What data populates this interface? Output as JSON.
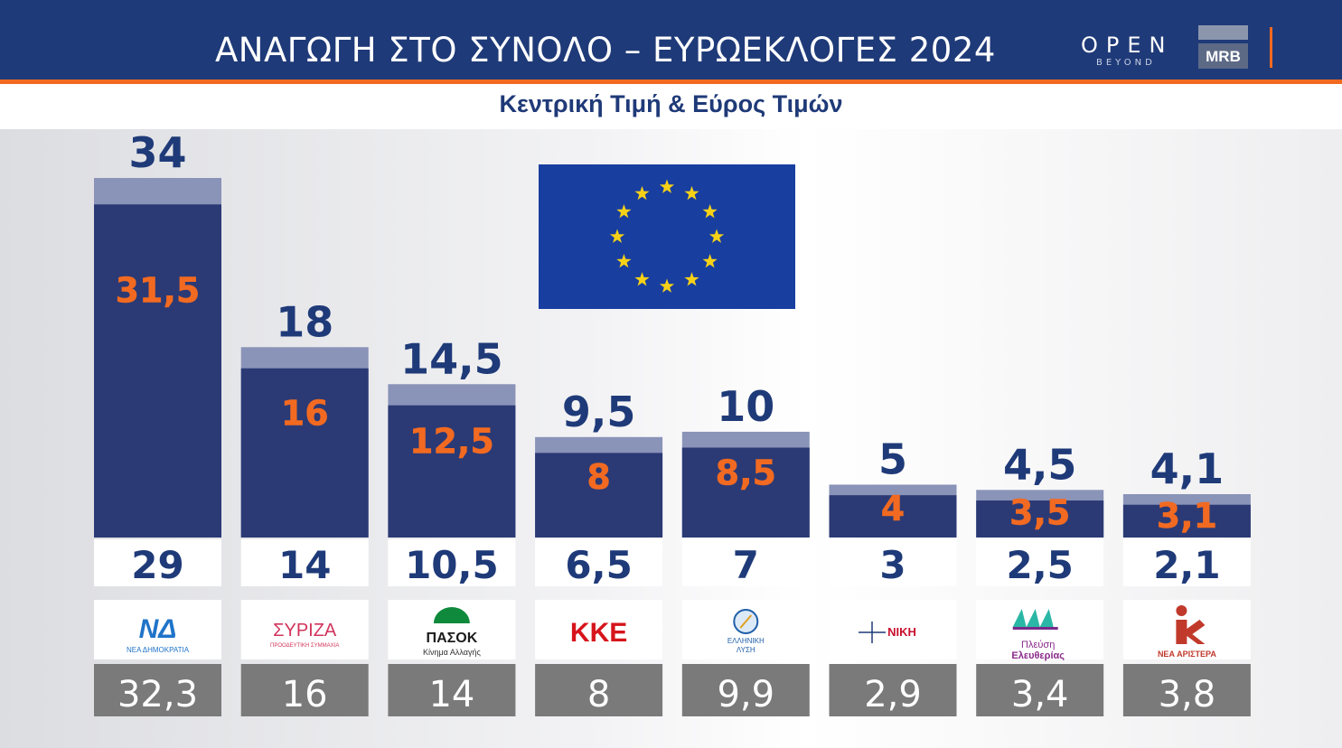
{
  "header": {
    "title": "ΑΝΑΓΩΓΗ ΣΤΟ ΣΥΝΟΛΟ – ΕΥΡΩΕΚΛΟΓΕΣ 2024",
    "logo_open": "OPEN",
    "logo_beyond": "BEYOND",
    "logo_mrb": "MRB"
  },
  "subtitle": "Κεντρική Τιμή & Εύρος Τιμών",
  "colors": {
    "header_bg": "#1f3a78",
    "accent_orange": "#f26a21",
    "bar_dark": "#2b3a75",
    "bar_light": "#8a93b8",
    "result_box": "#7a7a7a",
    "eu_blue": "#183ea0",
    "eu_star": "#f7d117"
  },
  "chart_data": {
    "type": "bar",
    "categories": [
      "ΝΕΑ ΔΗΜΟΚΡΑΤΙΑ",
      "ΣΥΡΙΖΑ",
      "ΠΑΣΟΚ",
      "ΚΚΕ",
      "ΕΛΛΗΝΙΚΗ ΛΥΣΗ",
      "ΝΙΚΗ",
      "Πλεύση Ελευθερίας",
      "ΝΕΑ ΑΡΙΣΤΕΡΑ"
    ],
    "series": [
      {
        "values": [
          29,
          14,
          10.5,
          6.5,
          7,
          3,
          2.5,
          2.1
        ],
        "labels": [
          "29",
          "14",
          "10,5",
          "6,5",
          "7",
          "3",
          "2,5",
          "2,1"
        ]
      },
      {
        "values": [
          31.5,
          16,
          12.5,
          8,
          8.5,
          4,
          3.5,
          3.1
        ],
        "labels": [
          "31,5",
          "16",
          "12,5",
          "8",
          "8,5",
          "4",
          "3,5",
          "3,1"
        ]
      },
      {
        "values": [
          34,
          18,
          14.5,
          9.5,
          10,
          5,
          4.5,
          4.1
        ],
        "labels": [
          "34",
          "18",
          "14,5",
          "9,5",
          "10",
          "5",
          "4,5",
          "4,1"
        ]
      }
    ],
    "results": {
      "values": [
        32.3,
        16,
        14,
        8,
        9.9,
        2.9,
        3.4,
        3.8
      ],
      "labels": [
        "32,3",
        "16",
        "14",
        "8",
        "9,9",
        "2,9",
        "3,4",
        "3,8"
      ]
    },
    "title": "",
    "xlabel": "",
    "ylabel": "",
    "ylim": [
      0,
      34
    ],
    "grid": false
  },
  "party_logos": [
    {
      "icon": "nd-logo-icon",
      "mark": "ΝΔ",
      "text": "ΝΕΑ ΔΗΜΟΚΡΑΤΙΑ",
      "color": "#1f74c9"
    },
    {
      "icon": "syriza-logo-icon",
      "mark": "ΣΥΡΙΖΑ",
      "text": "ΠΡΟΟΔΕΥΤΙΚΗ ΣΥΜΜΑΧΙΑ",
      "color": "#d1345b"
    },
    {
      "icon": "pasok-logo-icon",
      "mark": "ΠΑΣΟΚ",
      "text": "Κίνημα Αλλαγής",
      "color": "#0f8a3c"
    },
    {
      "icon": "kke-logo-icon",
      "mark": "ΚΚΕ",
      "text": "",
      "color": "#d6141c"
    },
    {
      "icon": "elliniki-lysi-logo-icon",
      "mark": "ΕΛΛΗΝΙΚΗ",
      "text": "ΛΥΣΗ",
      "color": "#1f5fa8"
    },
    {
      "icon": "niki-logo-icon",
      "mark": "ΝΙΚΗ",
      "text": "",
      "color": "#c8102e"
    },
    {
      "icon": "plefsi-logo-icon",
      "mark": "Πλεύση",
      "text": "Ελευθερίας",
      "color": "#8a2a8a"
    },
    {
      "icon": "nea-aristera-logo-icon",
      "mark": "ΝΕΑ ΑΡΙΣΤΕΡΑ",
      "text": "",
      "color": "#c0392b"
    }
  ]
}
